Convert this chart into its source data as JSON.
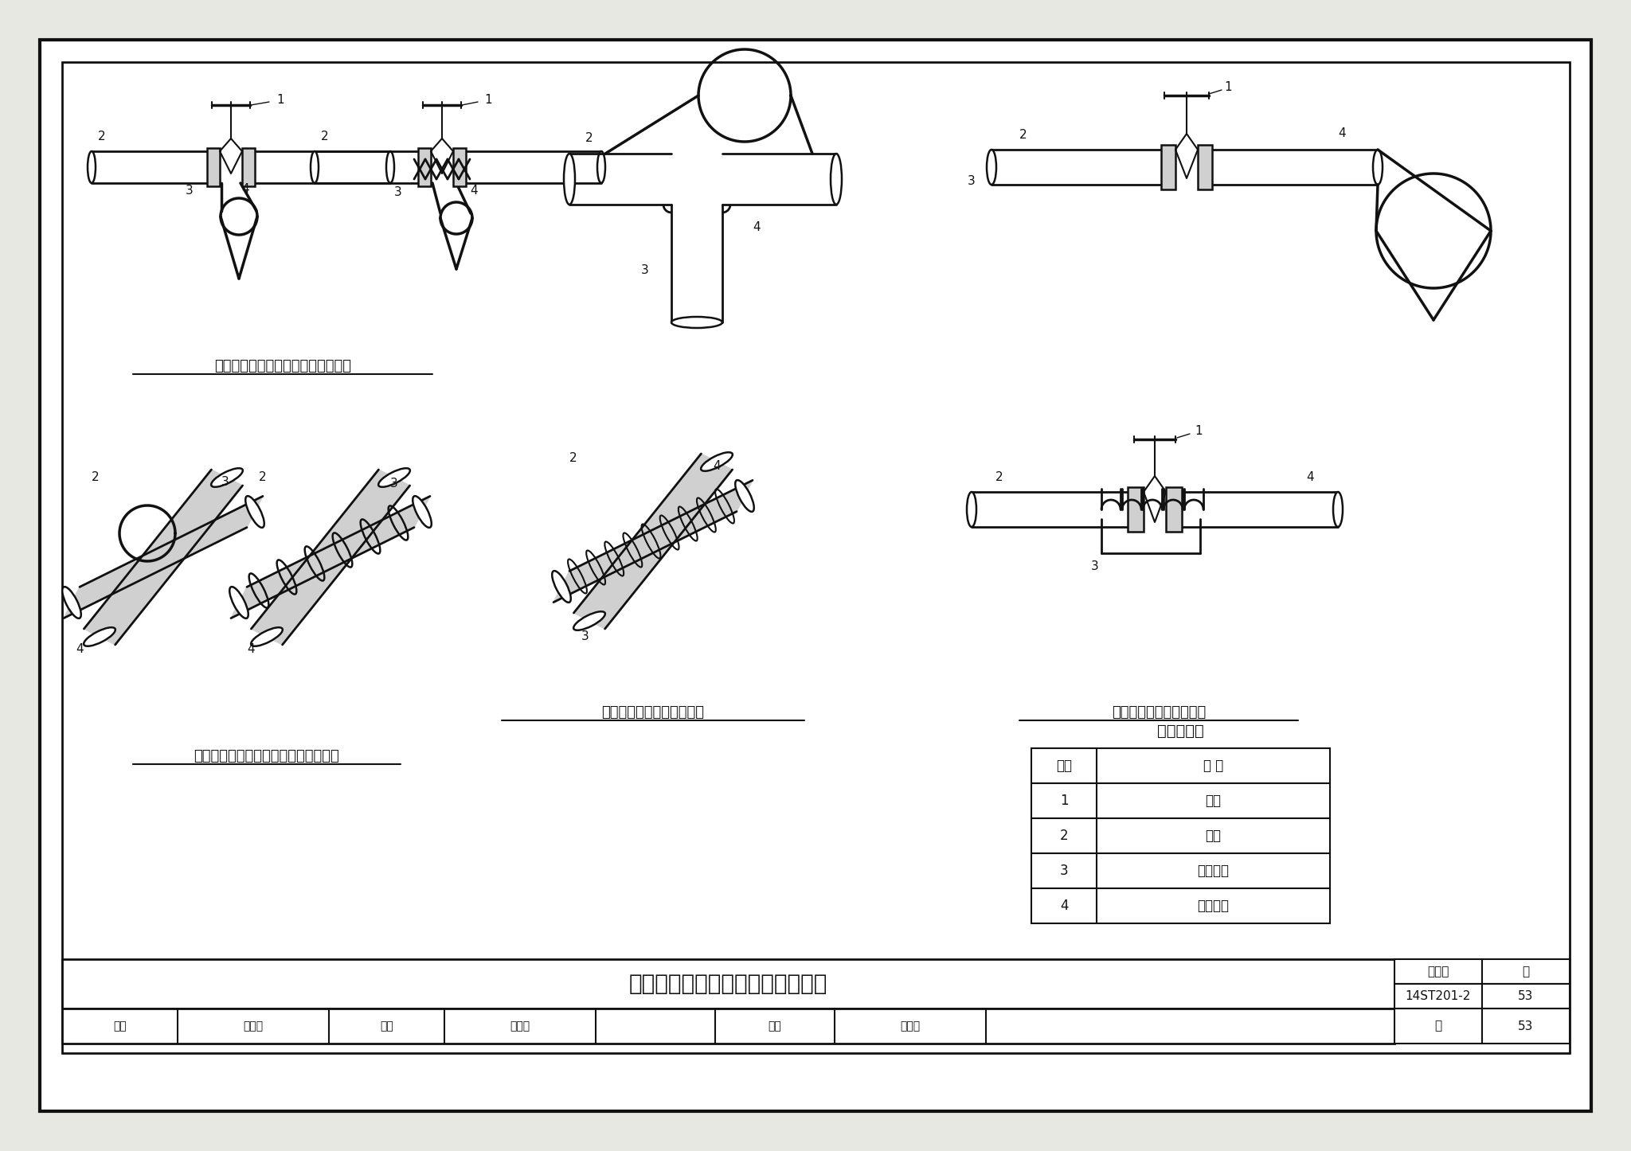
{
  "bg_color": "#e8e8e3",
  "page_bg": "#ffffff",
  "border_color": "#111111",
  "title_main": "阀门、三通的电伴热带安装位置图",
  "atlas_no": "14ST201-2",
  "page_num": "53",
  "label1": "变功率（自限式）电伴热带缠绕闸阀",
  "label2": "变功率（自限式）电伴热带缠绕三通管",
  "label3": "恒功率电伴热带缠绕三通管",
  "label4": "恒功率电伴热带缠绕闸阀",
  "table_title": "名称对照表",
  "table_headers": [
    "编号",
    "名 称"
  ],
  "table_rows": [
    [
      "1",
      "阀体"
    ],
    [
      "2",
      "管道"
    ],
    [
      "3",
      "电伴热带"
    ],
    [
      "4",
      "固定胶带"
    ]
  ],
  "footer_review": "审核",
  "footer_review_name": "张先群",
  "footer_check": "校对",
  "footer_check_name": "赵际顺",
  "footer_design": "设计",
  "footer_design_name": "赵恒鹏",
  "footer_page_label": "页",
  "footer_atlas_label": "图集号"
}
